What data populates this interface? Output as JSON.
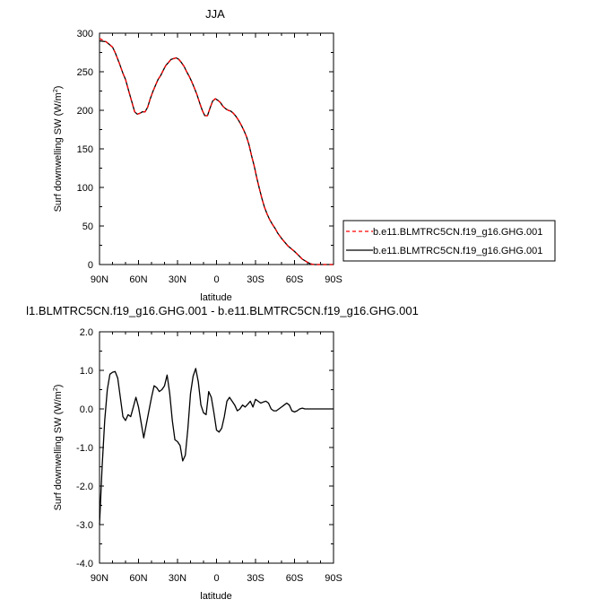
{
  "chart_data": [
    {
      "type": "line",
      "title": "JJA",
      "xlabel": "latitude",
      "ylabel": "Surf downwelling SW (W/m",
      "ylabel_sup": "2",
      "ylabel_close": ")",
      "xlim": [
        90,
        -90
      ],
      "ylim": [
        0,
        300
      ],
      "x_ticks": [
        90,
        60,
        30,
        0,
        -30,
        -60,
        -90
      ],
      "x_tick_labels": [
        "90N",
        "60N",
        "30N",
        "0",
        "30S",
        "60S",
        "90S"
      ],
      "y_ticks": [
        0,
        50,
        100,
        150,
        200,
        250,
        300
      ],
      "y_tick_labels": [
        "0",
        "50",
        "100",
        "150",
        "200",
        "250",
        "300"
      ],
      "legend_position": "right",
      "series": [
        {
          "name": "b.e11.BLMTRC5CN.f19_g16.GHG.001",
          "color": "#ff0000",
          "dash": "dashed",
          "x": [
            90,
            85,
            80,
            78,
            75,
            72,
            70,
            67,
            65,
            63,
            61,
            59,
            57,
            55,
            53,
            51,
            49,
            47,
            45,
            43,
            41,
            39,
            37,
            35,
            33,
            31,
            29,
            27,
            25,
            23,
            21,
            19,
            17,
            15,
            13,
            11,
            9,
            7,
            5,
            3,
            1,
            -1,
            -3,
            -5,
            -7,
            -9,
            -11,
            -13,
            -15,
            -17,
            -19,
            -21,
            -23,
            -25,
            -27,
            -29,
            -31,
            -33,
            -35,
            -37,
            -39,
            -41,
            -43,
            -45,
            -47,
            -50,
            -55,
            -60,
            -63,
            -66,
            -69,
            -72,
            -75,
            -78,
            -81,
            -84,
            -87,
            -90
          ],
          "y": [
            293,
            289,
            282,
            275,
            262,
            248,
            240,
            222,
            210,
            198,
            195,
            196,
            198,
            198,
            204,
            215,
            224,
            232,
            240,
            245,
            252,
            258,
            262,
            266,
            267,
            268,
            266,
            262,
            257,
            250,
            244,
            237,
            229,
            220,
            210,
            200,
            193,
            193,
            203,
            212,
            215,
            213,
            210,
            205,
            202,
            200,
            199,
            196,
            192,
            187,
            181,
            174,
            166,
            155,
            141,
            128,
            112,
            98,
            85,
            74,
            65,
            58,
            52,
            47,
            41,
            34,
            24,
            17,
            12,
            7,
            4,
            1,
            0,
            0,
            0,
            0,
            0,
            0
          ]
        },
        {
          "name": "b.e11.BLMTRC5CN.f19_g16.GHG.001",
          "color": "#000000",
          "dash": "solid",
          "x": [
            90,
            85,
            80,
            78,
            75,
            72,
            70,
            67,
            65,
            63,
            61,
            59,
            57,
            55,
            53,
            51,
            49,
            47,
            45,
            43,
            41,
            39,
            37,
            35,
            33,
            31,
            29,
            27,
            25,
            23,
            21,
            19,
            17,
            15,
            13,
            11,
            9,
            7,
            5,
            3,
            1,
            -1,
            -3,
            -5,
            -7,
            -9,
            -11,
            -13,
            -15,
            -17,
            -19,
            -21,
            -23,
            -25,
            -27,
            -29,
            -31,
            -33,
            -35,
            -37,
            -39,
            -41,
            -43,
            -45,
            -47,
            -50,
            -55,
            -60,
            -63,
            -66,
            -69,
            -72,
            -75,
            -78,
            -81,
            -84,
            -87,
            -90
          ],
          "y": [
            290,
            289,
            282,
            275,
            262,
            248,
            240,
            222,
            210,
            198,
            195,
            196,
            198,
            198,
            204,
            215,
            224,
            232,
            240,
            245,
            252,
            258,
            262,
            266,
            267,
            268,
            266,
            262,
            257,
            250,
            244,
            237,
            229,
            220,
            210,
            200,
            193,
            193,
            203,
            212,
            215,
            213,
            210,
            205,
            202,
            200,
            199,
            196,
            192,
            187,
            181,
            174,
            166,
            155,
            141,
            128,
            112,
            98,
            85,
            74,
            65,
            58,
            52,
            47,
            41,
            34,
            24,
            17,
            12,
            7,
            4,
            1,
            0,
            0,
            0,
            0,
            0,
            0
          ]
        }
      ]
    },
    {
      "type": "line",
      "title": "l1.BLMTRC5CN.f19_g16.GHG.001 - b.e11.BLMTRC5CN.f19_g16.GHG.001",
      "xlabel": "latitude",
      "ylabel": "Surf downwelling SW (W/m",
      "ylabel_sup": "2",
      "ylabel_close": ")",
      "xlim": [
        90,
        -90
      ],
      "ylim": [
        -4,
        2
      ],
      "x_ticks": [
        90,
        60,
        30,
        0,
        -30,
        -60,
        -90
      ],
      "x_tick_labels": [
        "90N",
        "60N",
        "30N",
        "0",
        "30S",
        "60S",
        "90S"
      ],
      "y_ticks": [
        -4,
        -3,
        -2,
        -1,
        0,
        1,
        2
      ],
      "y_tick_labels": [
        "-4.0",
        "-3.0",
        "-2.0",
        "-1.0",
        "0.0",
        "1.0",
        "2.0"
      ],
      "series": [
        {
          "name": "",
          "color": "#000000",
          "dash": "solid",
          "x": [
            90,
            88,
            86,
            84,
            82,
            80,
            78,
            76,
            74,
            72,
            70,
            68,
            66,
            64,
            62,
            60,
            58,
            56,
            54,
            52,
            50,
            48,
            46,
            44,
            42,
            40,
            38,
            36,
            34,
            32,
            30,
            28,
            26,
            24,
            22,
            20,
            18,
            16,
            14,
            12,
            10,
            8,
            6,
            4,
            2,
            0,
            -2,
            -4,
            -6,
            -8,
            -10,
            -12,
            -14,
            -16,
            -18,
            -20,
            -22,
            -24,
            -26,
            -28,
            -30,
            -32,
            -34,
            -36,
            -38,
            -40,
            -42,
            -44,
            -46,
            -48,
            -50,
            -52,
            -54,
            -56,
            -58,
            -60,
            -62,
            -64,
            -66,
            -68,
            -70,
            -75,
            -80,
            -85,
            -90
          ],
          "y": [
            -3.0,
            -1.5,
            -0.3,
            0.5,
            0.9,
            0.95,
            0.97,
            0.8,
            0.3,
            -0.2,
            -0.3,
            -0.15,
            -0.2,
            0.05,
            0.3,
            0.05,
            -0.35,
            -0.75,
            -0.4,
            -0.05,
            0.3,
            0.6,
            0.55,
            0.45,
            0.5,
            0.6,
            0.88,
            0.4,
            -0.3,
            -0.8,
            -0.85,
            -0.95,
            -1.35,
            -1.2,
            -0.5,
            0.4,
            0.85,
            1.05,
            0.7,
            0.1,
            -0.1,
            -0.15,
            0.45,
            0.3,
            -0.1,
            -0.55,
            -0.6,
            -0.5,
            -0.2,
            0.2,
            0.3,
            0.2,
            0.1,
            -0.05,
            0.0,
            0.1,
            0.05,
            0.12,
            0.2,
            0.05,
            0.25,
            0.2,
            0.15,
            0.18,
            0.2,
            0.15,
            0.0,
            -0.05,
            -0.05,
            0.0,
            0.05,
            0.1,
            0.15,
            0.1,
            -0.05,
            -0.08,
            -0.05,
            0.0,
            0.02,
            0.0,
            0.0,
            0.0,
            0.0,
            0.0,
            0.0
          ]
        }
      ]
    }
  ]
}
